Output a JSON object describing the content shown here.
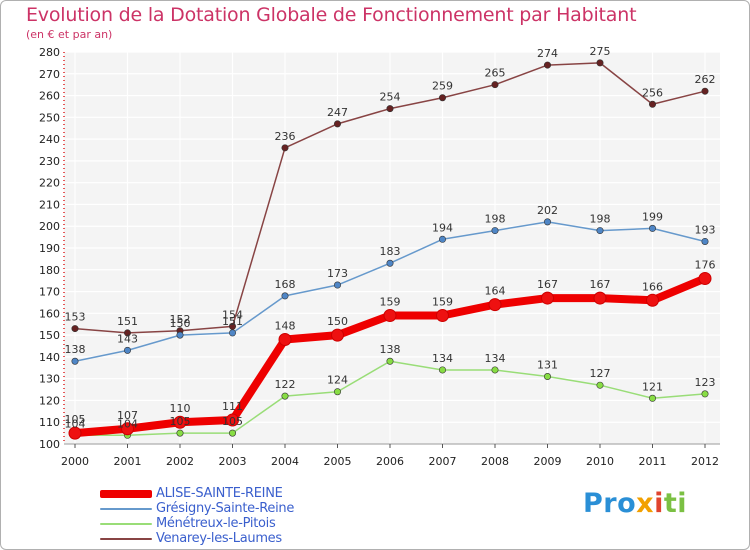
{
  "title": "Evolution de la Dotation Globale de Fonctionnement par Habitant",
  "subtitle": "(en € et par an)",
  "logo": {
    "p1": "Pro",
    "p2": "x",
    "p3": "i",
    "p4": "ti"
  },
  "chart_data": {
    "type": "line",
    "title": "Evolution de la Dotation Globale de Fonctionnement par Habitant",
    "subtitle": "(en € et par an)",
    "xlabel": "",
    "ylabel": "",
    "categories": [
      "2000",
      "2001",
      "2002",
      "2003",
      "2004",
      "2005",
      "2006",
      "2007",
      "2008",
      "2009",
      "2010",
      "2011",
      "2012"
    ],
    "ylim": [
      100,
      280
    ],
    "yticks": [
      100,
      110,
      120,
      130,
      140,
      150,
      160,
      170,
      180,
      190,
      200,
      210,
      220,
      230,
      240,
      250,
      260,
      270,
      280
    ],
    "grid": true,
    "legend_position": "bottom-left",
    "series": [
      {
        "name": "ALISE-SAINTE-REINE",
        "color": "#ee0000",
        "width": 8,
        "marker_fill": "#ee1111",
        "values": [
          105,
          107,
          110,
          111,
          148,
          150,
          159,
          159,
          164,
          167,
          167,
          166,
          176
        ]
      },
      {
        "name": "Grésigny-Sainte-Reine",
        "color": "#6699cc",
        "width": 1.5,
        "marker_fill": "#4f86c6",
        "values": [
          138,
          143,
          150,
          151,
          168,
          173,
          183,
          194,
          198,
          202,
          198,
          199,
          193
        ]
      },
      {
        "name": "Ménétreux-le-Pitois",
        "color": "#99dd77",
        "width": 1.5,
        "marker_fill": "#88dd44",
        "values": [
          104,
          104,
          105,
          105,
          122,
          124,
          138,
          134,
          134,
          131,
          127,
          121,
          123
        ]
      },
      {
        "name": "Venarey-les-Laumes",
        "color": "#884444",
        "width": 1.5,
        "marker_fill": "#662222",
        "values": [
          153,
          151,
          152,
          154,
          236,
          247,
          254,
          259,
          265,
          274,
          275,
          256,
          262
        ]
      }
    ]
  }
}
